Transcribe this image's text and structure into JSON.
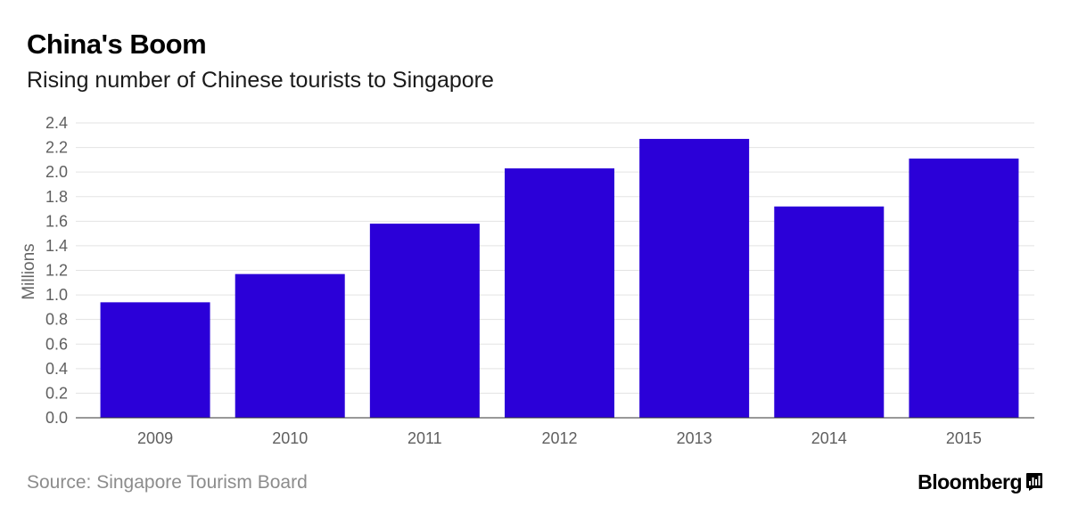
{
  "chart_data": {
    "type": "bar",
    "title": "China's Boom",
    "subtitle": "Rising number of Chinese tourists to Singapore",
    "categories": [
      "2009",
      "2010",
      "2011",
      "2012",
      "2013",
      "2014",
      "2015"
    ],
    "values": [
      0.94,
      1.17,
      1.58,
      2.03,
      2.27,
      1.72,
      2.11
    ],
    "xlabel": "",
    "ylabel": "Millions",
    "ylim": [
      0,
      2.4
    ],
    "yticks": [
      "0.0",
      "0.2",
      "0.4",
      "0.6",
      "0.8",
      "1.0",
      "1.2",
      "1.4",
      "1.6",
      "1.8",
      "2.0",
      "2.2",
      "2.4"
    ],
    "grid": true,
    "bar_color": "#2b00d8",
    "source": "Source: Singapore Tourism Board"
  },
  "brand": {
    "name": "Bloomberg",
    "icon": "bloomberg-chart-icon"
  }
}
